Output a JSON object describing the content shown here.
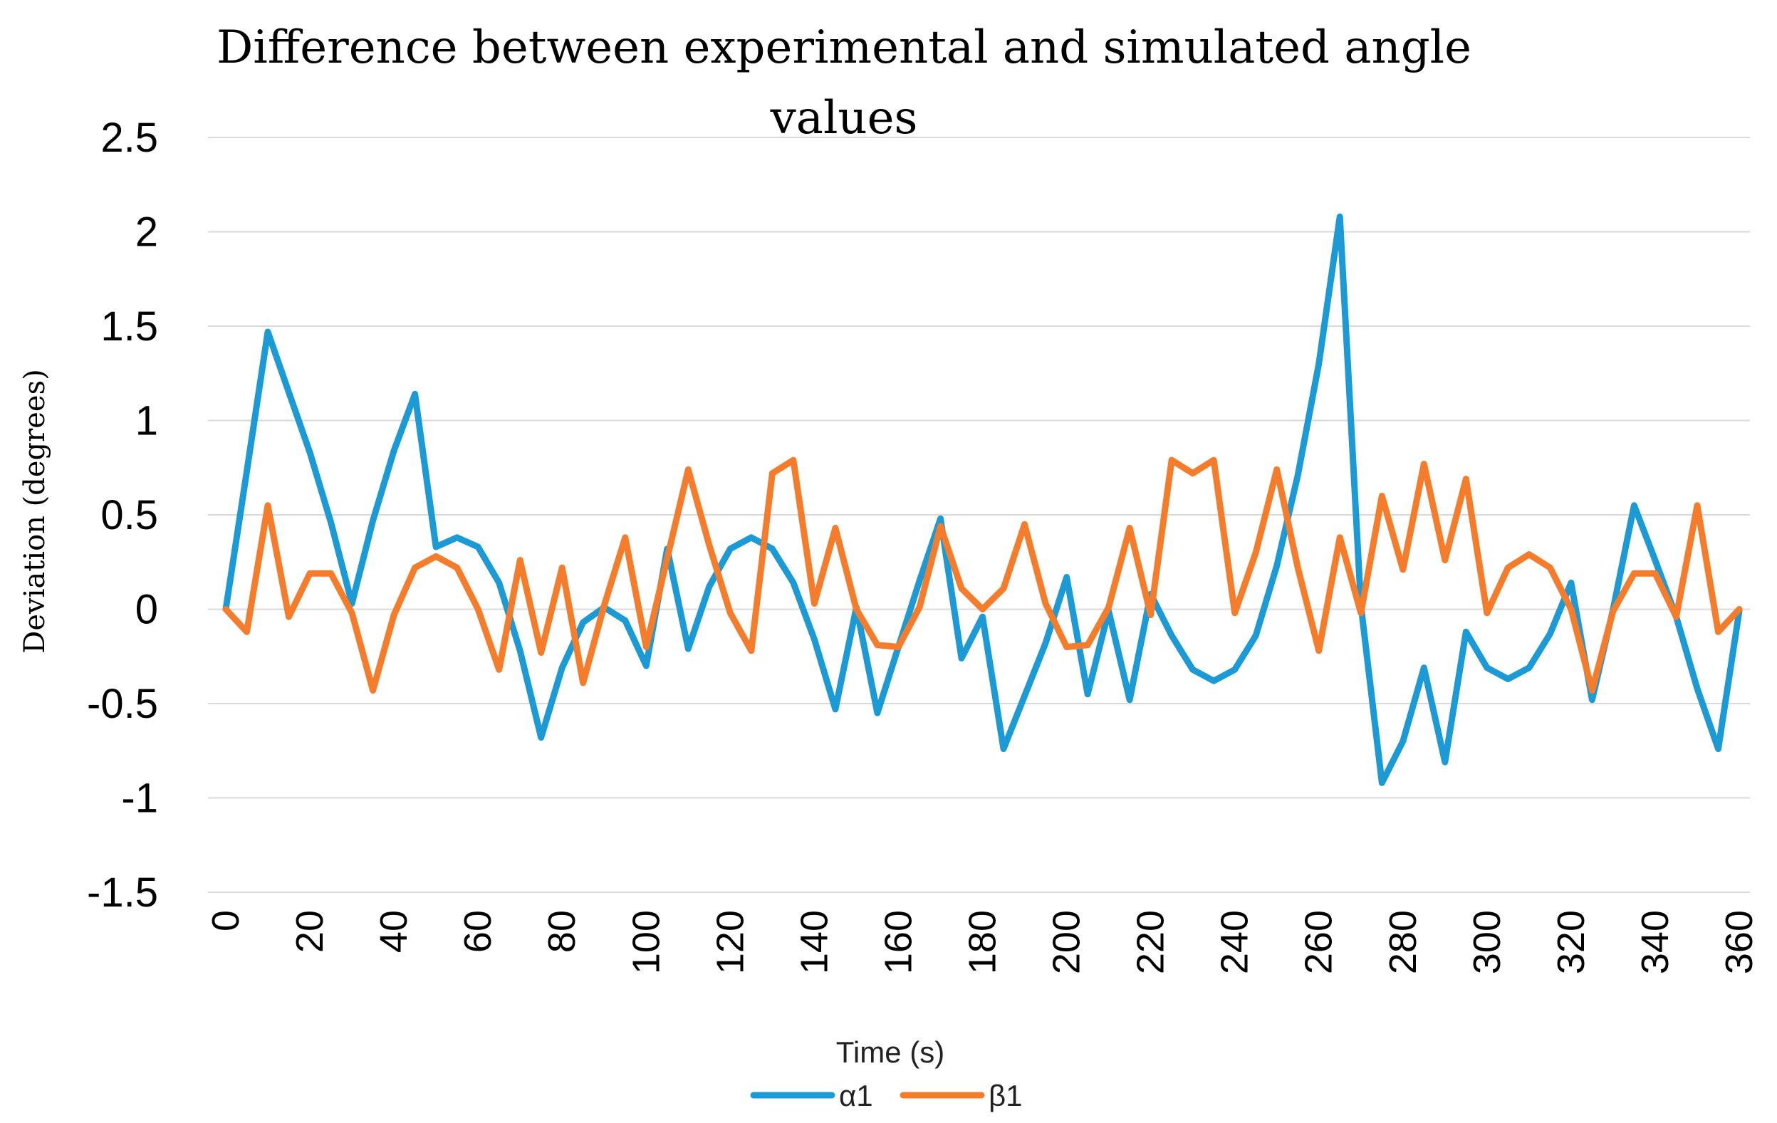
{
  "chart_data": {
    "type": "line",
    "title": "Difference between experimental and simulated angle values",
    "title_lines": [
      "Difference between experimental and simulated angle",
      "values"
    ],
    "xlabel": "Time (s)",
    "ylabel": "Deviation (degrees)",
    "ylim": [
      -1.5,
      2.5
    ],
    "yticks": [
      2.5,
      2,
      1.5,
      1,
      0.5,
      0,
      -0.5,
      -1,
      -1.5
    ],
    "ytick_labels": [
      "2.5",
      "2",
      "1.5",
      "1",
      "0.5",
      "0",
      "-0.5",
      "-1",
      "-1.5"
    ],
    "xlim": [
      0,
      360
    ],
    "xticks": [
      0,
      20,
      40,
      60,
      80,
      100,
      120,
      140,
      160,
      180,
      200,
      220,
      240,
      260,
      280,
      300,
      320,
      340,
      360
    ],
    "xtick_labels": [
      "0",
      "20",
      "40",
      "60",
      "80",
      "100",
      "120",
      "140",
      "160",
      "180",
      "200",
      "220",
      "240",
      "260",
      "280",
      "300",
      "320",
      "340",
      "360"
    ],
    "grid": true,
    "legend_position": "bottom",
    "x": [
      0,
      5,
      10,
      15,
      20,
      25,
      30,
      35,
      40,
      45,
      50,
      55,
      60,
      65,
      70,
      75,
      80,
      85,
      90,
      95,
      100,
      105,
      110,
      115,
      120,
      125,
      130,
      135,
      140,
      145,
      150,
      155,
      160,
      165,
      170,
      175,
      180,
      185,
      190,
      195,
      200,
      205,
      210,
      215,
      220,
      225,
      230,
      235,
      240,
      245,
      250,
      255,
      260,
      265,
      270,
      275,
      280,
      285,
      290,
      295,
      300,
      305,
      310,
      315,
      320,
      325,
      330,
      335,
      340,
      345,
      350,
      355,
      360
    ],
    "series": [
      {
        "name": "α1",
        "color": "#1B9AD6",
        "values": [
          0.0,
          0.73,
          1.47,
          1.15,
          0.83,
          0.46,
          0.03,
          0.47,
          0.84,
          1.14,
          0.33,
          0.38,
          0.33,
          0.14,
          -0.22,
          -0.68,
          -0.31,
          -0.07,
          0.01,
          -0.06,
          -0.3,
          0.32,
          -0.21,
          0.12,
          0.32,
          0.38,
          0.32,
          0.14,
          -0.16,
          -0.53,
          0.01,
          -0.55,
          -0.2,
          0.15,
          0.48,
          -0.26,
          -0.04,
          -0.74,
          -0.46,
          -0.18,
          0.17,
          -0.45,
          -0.01,
          -0.48,
          0.08,
          -0.14,
          -0.32,
          -0.38,
          -0.32,
          -0.14,
          0.23,
          0.71,
          1.3,
          2.08,
          0.02,
          -0.92,
          -0.7,
          -0.31,
          -0.81,
          -0.12,
          -0.31,
          -0.37,
          -0.31,
          -0.13,
          0.14,
          -0.48,
          0.0,
          0.55,
          0.26,
          -0.04,
          -0.42,
          -0.74,
          -0.01
        ]
      },
      {
        "name": "β1",
        "color": "#F47C2A",
        "values": [
          0.0,
          -0.12,
          0.55,
          -0.04,
          0.19,
          0.19,
          -0.02,
          -0.43,
          -0.03,
          0.22,
          0.28,
          0.22,
          0.0,
          -0.32,
          0.26,
          -0.23,
          0.22,
          -0.39,
          0.02,
          0.38,
          -0.2,
          0.27,
          0.74,
          0.34,
          -0.02,
          -0.22,
          0.72,
          0.79,
          0.03,
          0.43,
          0.0,
          -0.19,
          -0.2,
          0.01,
          0.44,
          0.11,
          0.0,
          0.11,
          0.45,
          0.03,
          -0.2,
          -0.19,
          0.01,
          0.43,
          -0.03,
          0.79,
          0.72,
          0.79,
          -0.02,
          0.3,
          0.74,
          0.22,
          -0.22,
          0.38,
          -0.02,
          0.6,
          0.21,
          0.77,
          0.26,
          0.69,
          -0.02,
          0.22,
          0.29,
          0.22,
          0.0,
          -0.43,
          -0.01,
          0.19,
          0.19,
          -0.04,
          0.55,
          -0.12,
          0.0
        ]
      }
    ]
  }
}
